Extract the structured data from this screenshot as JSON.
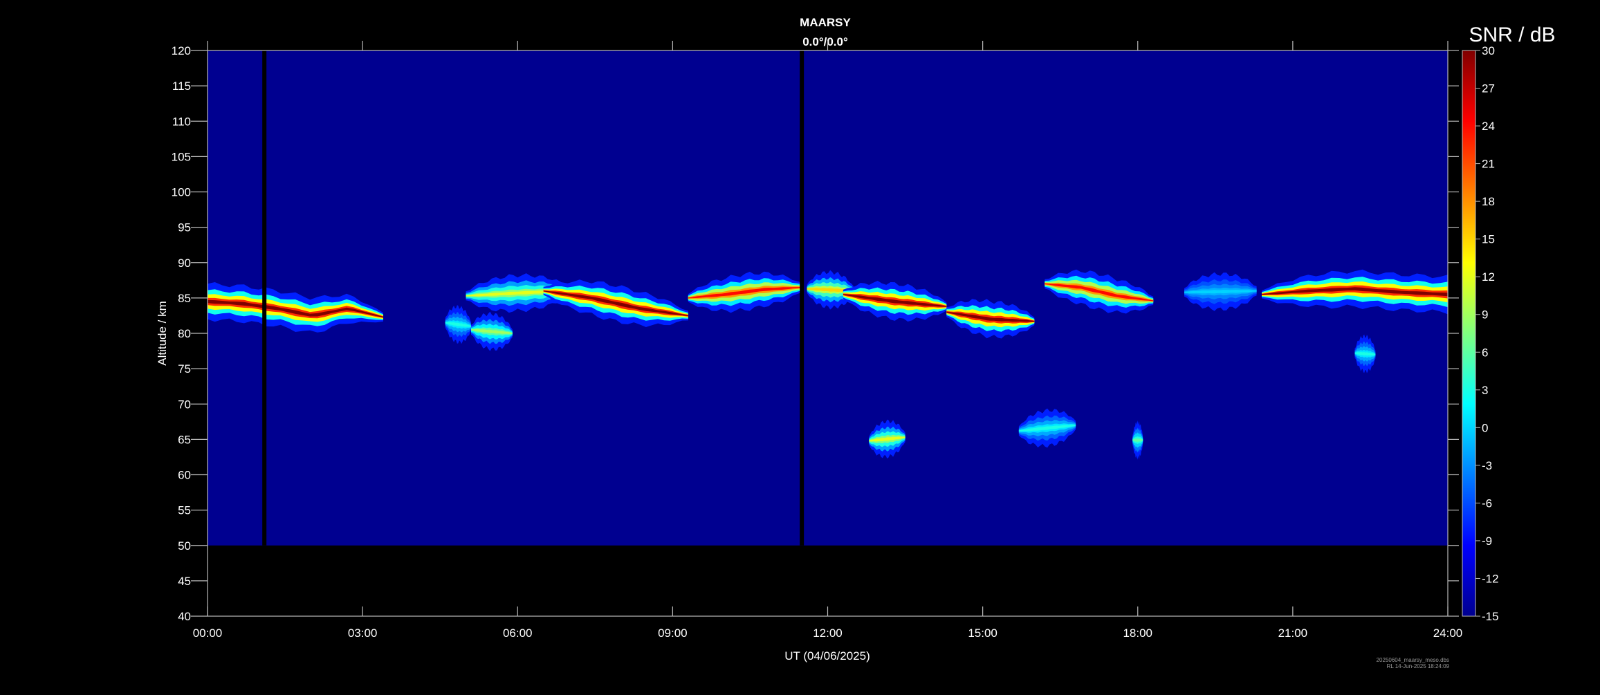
{
  "chart_data": {
    "type": "heatmap",
    "title": "MAARSY",
    "subtitle": "0.0°/0.0°",
    "xlabel": "UT (04/06/2025)",
    "ylabel": "Altitude / km",
    "xlim_hours": [
      0,
      24
    ],
    "ylim": [
      40,
      120
    ],
    "x_ticks": [
      "00:00",
      "03:00",
      "06:00",
      "09:00",
      "12:00",
      "15:00",
      "18:00",
      "21:00",
      "24:00"
    ],
    "y_ticks": [
      40,
      45,
      50,
      55,
      60,
      65,
      70,
      75,
      80,
      85,
      90,
      95,
      100,
      105,
      110,
      115,
      120
    ],
    "data_altitude_range": [
      50,
      120
    ],
    "background_snr_db": -14,
    "data_gaps_hours": [
      1.1,
      11.5
    ],
    "colorbar": {
      "label": "SNR / dB",
      "range": [
        -15,
        30
      ],
      "ticks": [
        30,
        27,
        24,
        21,
        18,
        15,
        12,
        9,
        6,
        3,
        0,
        -3,
        -6,
        -9,
        -12,
        -15
      ],
      "colormap": [
        "#00008f",
        "#0000ff",
        "#00ffff",
        "#ffff00",
        "#ff0000",
        "#800000"
      ]
    },
    "echo_layers": [
      {
        "start_h": 0.0,
        "end_h": 3.4,
        "altitude_km": [
          84.5,
          84.2,
          83.5,
          82.5,
          83.5,
          82.3
        ],
        "peak_snr_db": 30
      },
      {
        "start_h": 4.6,
        "end_h": 5.1,
        "altitude_km": [
          81.5,
          81.0
        ],
        "peak_snr_db": 3
      },
      {
        "start_h": 5.1,
        "end_h": 5.9,
        "altitude_km": [
          80.5,
          80.0
        ],
        "peak_snr_db": 9
      },
      {
        "start_h": 5.0,
        "end_h": 7.0,
        "altitude_km": [
          85.3,
          85.7,
          86.0
        ],
        "peak_snr_db": 12
      },
      {
        "start_h": 6.5,
        "end_h": 9.3,
        "altitude_km": [
          86.0,
          85.0,
          83.5,
          82.5
        ],
        "peak_snr_db": 30
      },
      {
        "start_h": 9.3,
        "end_h": 11.5,
        "altitude_km": [
          85.0,
          85.5,
          86.2,
          86.5
        ],
        "peak_snr_db": 24
      },
      {
        "start_h": 11.6,
        "end_h": 12.5,
        "altitude_km": [
          86.3,
          86.0
        ],
        "peak_snr_db": 15
      },
      {
        "start_h": 12.3,
        "end_h": 14.3,
        "altitude_km": [
          85.5,
          84.5,
          83.8
        ],
        "peak_snr_db": 30
      },
      {
        "start_h": 14.3,
        "end_h": 16.0,
        "altitude_km": [
          83.0,
          82.0,
          81.7
        ],
        "peak_snr_db": 30
      },
      {
        "start_h": 16.2,
        "end_h": 18.3,
        "altitude_km": [
          87.0,
          86.5,
          85.3,
          84.6
        ],
        "peak_snr_db": 24
      },
      {
        "start_h": 18.9,
        "end_h": 20.3,
        "altitude_km": [
          85.8,
          86.0
        ],
        "peak_snr_db": 0
      },
      {
        "start_h": 20.4,
        "end_h": 24.0,
        "altitude_km": [
          85.5,
          86.0,
          86.3,
          85.8,
          85.5
        ],
        "peak_snr_db": 30
      },
      {
        "start_h": 12.8,
        "end_h": 13.5,
        "altitude_km": [
          64.8,
          65.3
        ],
        "peak_snr_db": 12
      },
      {
        "start_h": 15.7,
        "end_h": 16.8,
        "altitude_km": [
          66.2,
          67.0
        ],
        "peak_snr_db": 3
      },
      {
        "start_h": 17.9,
        "end_h": 18.1,
        "altitude_km": [
          64.9,
          64.9
        ],
        "peak_snr_db": 6
      },
      {
        "start_h": 22.2,
        "end_h": 22.6,
        "altitude_km": [
          77.2,
          77.0
        ],
        "peak_snr_db": 3
      }
    ]
  },
  "footer": {
    "file": "20250604_maarsy_meso.dbs",
    "stamp": "RL 14-Jun-2025 18:24:09"
  }
}
